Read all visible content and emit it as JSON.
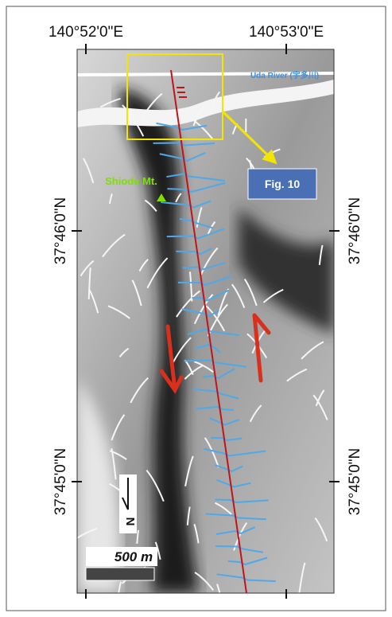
{
  "map": {
    "longitude_labels": [
      "140°52'0\"E",
      "140°53'0\"E"
    ],
    "latitude_labels": [
      "37°46'0\"N",
      "37°45'0\"N"
    ],
    "river_label": "Uda River (宇多川)",
    "figure_callout": "Fig. 10",
    "mountain_label": "Shiode Mt.",
    "scale_label": "500 m",
    "north_label": "N"
  }
}
